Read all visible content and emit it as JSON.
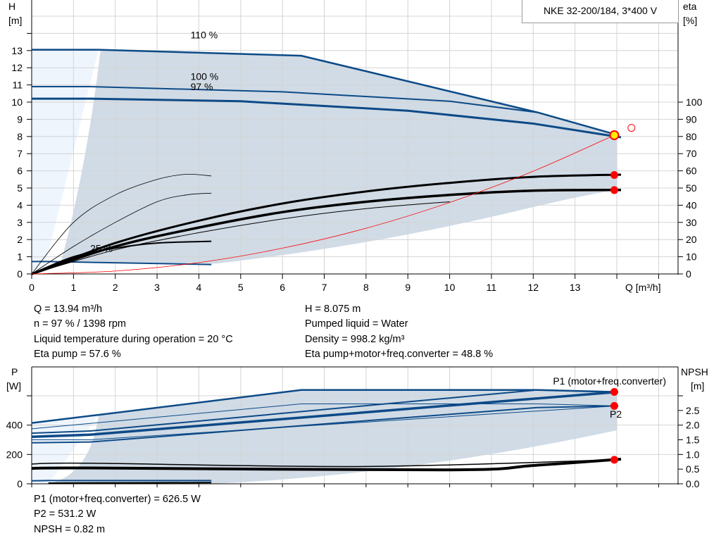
{
  "title": "NKE 32-200/184, 3*400 V",
  "info": {
    "left": [
      "Q = 13.94 m³/h",
      "n = 97 % / 1398 rpm",
      "Liquid temperature during operation = 20 °C",
      "Eta pump = 57.6 %"
    ],
    "right": [
      "H = 8.075 m",
      "Pumped liquid = Water",
      "Density = 998.2 kg/m³",
      "Eta pump+motor+freq.converter = 48.8 %"
    ],
    "bottom": [
      "P1 (motor+freq.converter) = 626.5 W",
      "P2 = 531.2 W",
      "NPSH = 0.82 m"
    ]
  },
  "colors": {
    "curve": "#0d4a87",
    "region": "#d0dbe6",
    "region_light": "#eef5fd",
    "efficiency": "#000000",
    "system": "#ff0000",
    "point": "#ff0000",
    "duty_point": "#ffee00"
  },
  "chart_data": [
    {
      "type": "line",
      "xlabel": "Q [m³/h]",
      "ylabel": "H\n[m]",
      "y2label": "eta\n[%]",
      "xlim": [
        0,
        15.3
      ],
      "ylim": [
        0,
        16
      ],
      "xticks": [
        0,
        1,
        2,
        3,
        4,
        5,
        6,
        7,
        8,
        9,
        10,
        11,
        12,
        13
      ],
      "yticks": [
        0,
        1,
        2,
        3,
        4,
        5,
        6,
        7,
        8,
        9,
        10,
        11,
        12,
        13
      ],
      "y2ticks": [
        0,
        10,
        20,
        30,
        40,
        50,
        60,
        70,
        80,
        90,
        100
      ],
      "grid": true,
      "curve_labels": [
        {
          "text": "110 %",
          "x": 3.8,
          "y": 13.7
        },
        {
          "text": "100 %",
          "x": 3.8,
          "y": 11.3
        },
        {
          "text": "97 %",
          "x": 3.8,
          "y": 10.7
        },
        {
          "text": "25 %",
          "x": 1.4,
          "y": 1.3
        }
      ],
      "series": [
        {
          "axis": "H",
          "points": [
            [
              0,
              13.05
            ],
            [
              1.6,
              13.05
            ],
            [
              6.45,
              12.7
            ],
            [
              12.1,
              9.4
            ],
            [
              14,
              8.1
            ]
          ],
          "width": 2.5
        },
        {
          "axis": "H",
          "points": [
            [
              0,
              10.9
            ],
            [
              1.4,
              10.9
            ],
            [
              6,
              10.6
            ],
            [
              10,
              10.05
            ],
            [
              12.1,
              9.4
            ]
          ],
          "width": 2
        },
        {
          "axis": "H",
          "points": [
            [
              0,
              10.2
            ],
            [
              1.4,
              10.2
            ],
            [
              5,
              10.05
            ],
            [
              9,
              9.5
            ],
            [
              12,
              8.75
            ],
            [
              14.1,
              7.95
            ]
          ],
          "width": 3
        },
        {
          "axis": "H",
          "points": [
            [
              0,
              0.72
            ],
            [
              0.4,
              0.72
            ],
            [
              4.3,
              0.55
            ]
          ],
          "width": 2
        },
        {
          "axis": "eta",
          "points": [
            [
              0,
              0
            ],
            [
              1,
              16
            ],
            [
              2,
              30
            ],
            [
              3,
              42
            ],
            [
              3.7,
              46
            ],
            [
              4.3,
              47
            ]
          ],
          "width": 0.8
        },
        {
          "axis": "eta",
          "points": [
            [
              0,
              0
            ],
            [
              1,
              30
            ],
            [
              2,
              46
            ],
            [
              3,
              55
            ],
            [
              3.7,
              58
            ],
            [
              4.3,
              57
            ]
          ],
          "width": 0.8
        },
        {
          "axis": "eta",
          "points": [
            [
              0,
              0
            ],
            [
              1,
              10
            ],
            [
              2,
              15
            ],
            [
              3,
              18
            ],
            [
              4.3,
              19
            ]
          ],
          "width": 2
        },
        {
          "axis": "eta",
          "points": [
            [
              0,
              0
            ],
            [
              2,
              18
            ],
            [
              4,
              31
            ],
            [
              6,
              41
            ],
            [
              8,
              48
            ],
            [
              10,
              53
            ],
            [
              12,
              56.5
            ],
            [
              14.1,
              57.8
            ]
          ],
          "width": 3
        },
        {
          "axis": "eta",
          "points": [
            [
              0,
              0
            ],
            [
              2,
              16
            ],
            [
              4,
              27
            ],
            [
              6,
              36
            ],
            [
              8,
              42
            ],
            [
              10,
              46
            ],
            [
              12,
              48.5
            ],
            [
              14.1,
              48.9
            ]
          ],
          "width": 3.5
        },
        {
          "axis": "eta",
          "points": [
            [
              0,
              0
            ],
            [
              2,
              14
            ],
            [
              4,
              24
            ],
            [
              6,
              32
            ],
            [
              8,
              38
            ],
            [
              10,
              42
            ]
          ],
          "width": 1
        }
      ],
      "system_curve": {
        "points": [
          [
            0,
            0
          ],
          [
            2,
            0.17
          ],
          [
            4,
            0.66
          ],
          [
            6,
            1.5
          ],
          [
            8,
            2.66
          ],
          [
            10,
            4.16
          ],
          [
            12,
            5.98
          ],
          [
            13.94,
            8.075
          ]
        ]
      },
      "duty_point": {
        "Q": 13.94,
        "H": 8.075
      },
      "markers": [
        {
          "Q": 13.94,
          "eta": 57.6
        },
        {
          "Q": 13.94,
          "eta": 48.8
        }
      ],
      "target_point": {
        "Q": 14.35,
        "H": 8.5
      }
    },
    {
      "type": "line",
      "ylabel": "P\n[W]",
      "y2label": "NPSH\n[m]",
      "xlim": [
        0,
        15.3
      ],
      "ylim": [
        0,
        790
      ],
      "yticks": [
        0,
        200,
        400
      ],
      "y2ticks": [
        "0.0",
        "0.5",
        "1.0",
        "1.5",
        "2.0",
        "2.5"
      ],
      "grid": true,
      "series_labels": [
        "P1 (motor+freq.converter)",
        "P2"
      ],
      "series": [
        {
          "color": "curve",
          "points": [
            [
              0,
              415
            ],
            [
              1.6,
              470
            ],
            [
              6.45,
              640
            ],
            [
              12.1,
              640
            ],
            [
              14,
              626
            ]
          ],
          "width": 2.5
        },
        {
          "color": "curve",
          "points": [
            [
              0,
              375
            ],
            [
              6.45,
              545
            ],
            [
              12.1,
              545
            ],
            [
              14,
              531
            ]
          ],
          "width": 1
        },
        {
          "color": "curve",
          "points": [
            [
              0,
              345
            ],
            [
              1.4,
              360
            ],
            [
              12.1,
              640
            ],
            [
              14,
              626
            ]
          ],
          "width": 2
        },
        {
          "color": "curve",
          "points": [
            [
              0,
              320
            ],
            [
              1.4,
              335
            ],
            [
              14,
              626
            ]
          ],
          "width": 3.5
        },
        {
          "color": "curve",
          "points": [
            [
              0,
              300
            ],
            [
              1.4,
              300
            ],
            [
              14,
              531
            ]
          ],
          "width": 1
        },
        {
          "color": "curve",
          "points": [
            [
              0,
              280
            ],
            [
              1.4,
              285
            ],
            [
              12.1,
              520
            ],
            [
              14,
              531
            ]
          ],
          "width": 2
        },
        {
          "color": "curve",
          "points": [
            [
              0,
              20
            ],
            [
              0.4,
              22
            ],
            [
              4.3,
              22
            ]
          ],
          "width": 2
        },
        {
          "color": "efficiency",
          "points": [
            [
              0,
              135
            ],
            [
              1.4,
              140
            ],
            [
              8,
              118
            ],
            [
              14,
              164
            ]
          ],
          "width": 1.5
        },
        {
          "color": "efficiency",
          "points": [
            [
              0,
              105
            ],
            [
              1.4,
              108
            ],
            [
              10,
              95
            ],
            [
              12,
              125
            ],
            [
              14.1,
              168
            ]
          ],
          "width": 4
        },
        {
          "color": "efficiency",
          "points": [
            [
              0.4,
              5
            ],
            [
              4.3,
              8
            ]
          ],
          "width": 2
        }
      ],
      "markers": [
        {
          "Q": 13.94,
          "P": 626.5
        },
        {
          "Q": 13.94,
          "P": 531.2
        },
        {
          "Q": 13.94,
          "NPSH": 0.82
        }
      ]
    }
  ]
}
